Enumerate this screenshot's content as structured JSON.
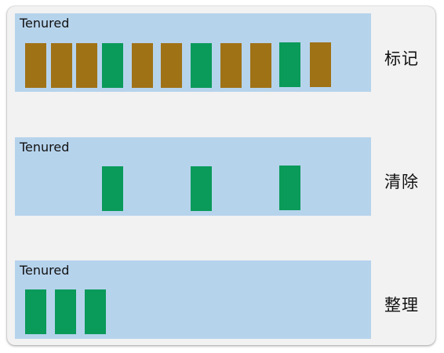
{
  "colors": {
    "panel_bg": "#b6d3ec",
    "live_object": "#0a9a5a",
    "garbage_object": "#a07216"
  },
  "panels": [
    {
      "id": "mark",
      "title": "Tenured",
      "step_label": "标记",
      "blocks": [
        "dead",
        "dead",
        "dead",
        "live",
        "dead",
        "dead",
        "live",
        "dead",
        "dead",
        "live",
        "dead"
      ]
    },
    {
      "id": "sweep",
      "title": "Tenured",
      "step_label": "清除",
      "blocks": [
        "empty",
        "empty",
        "empty",
        "live",
        "empty",
        "empty",
        "live",
        "empty",
        "empty",
        "live",
        "empty"
      ]
    },
    {
      "id": "compact",
      "title": "Tenured",
      "step_label": "整理",
      "blocks": [
        "live",
        "live",
        "live"
      ]
    }
  ]
}
